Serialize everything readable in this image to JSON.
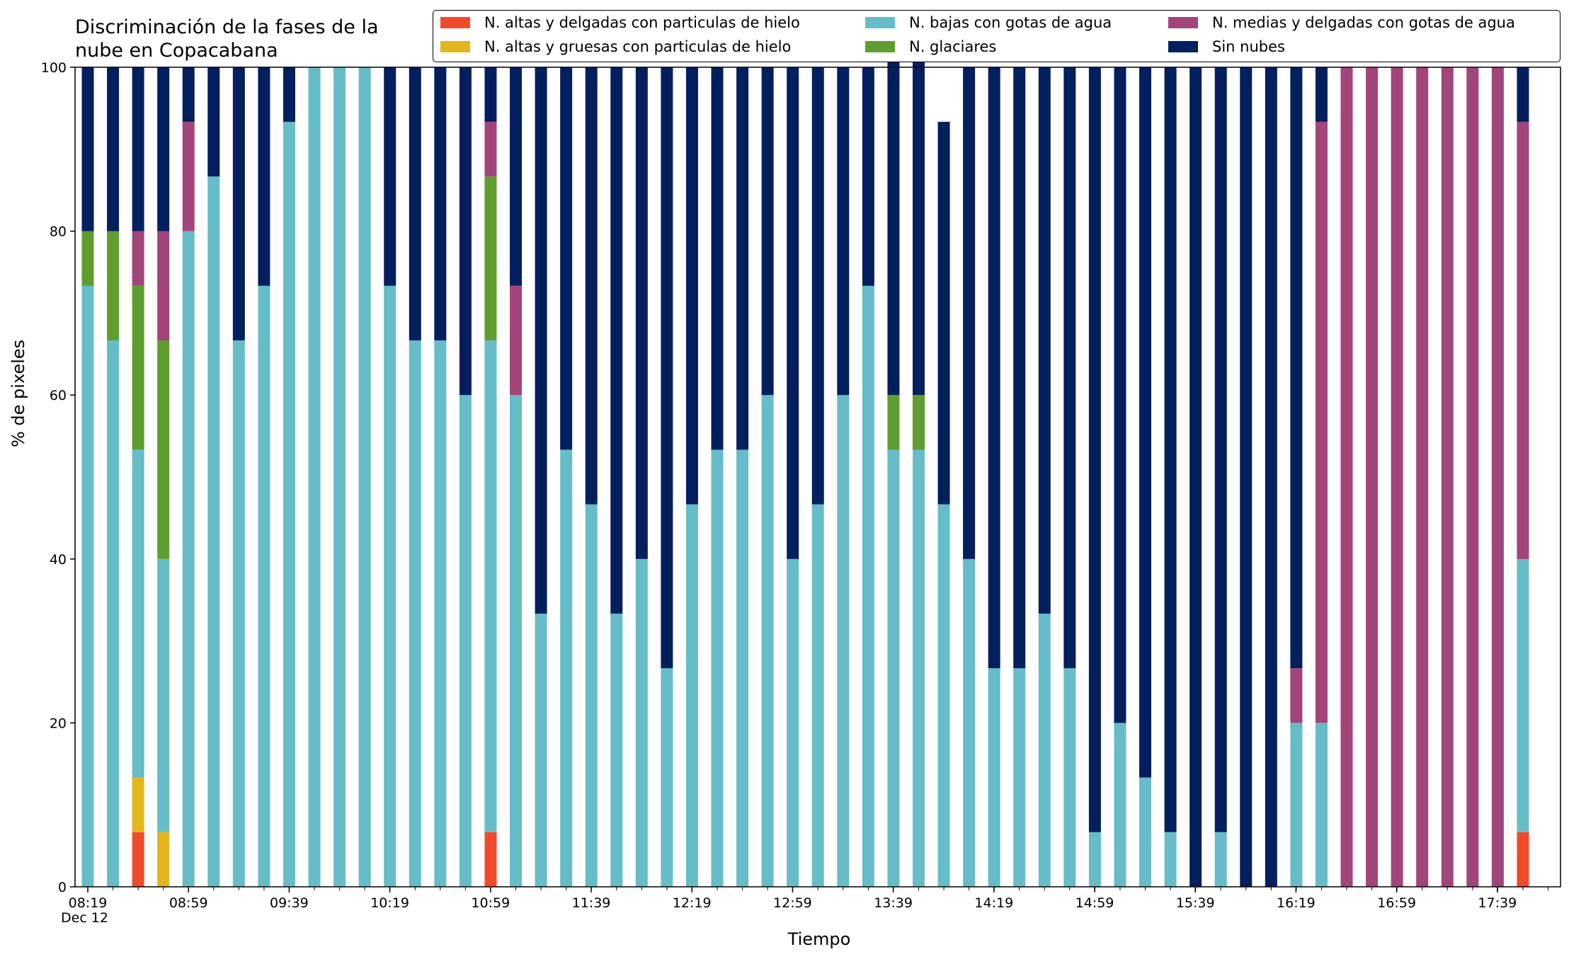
{
  "chart_data": {
    "type": "bar",
    "stacked": true,
    "title": "Discriminación de la fases de la\nnube en Copacabana",
    "xlabel": "Tiempo",
    "ylabel": "% de pixeles",
    "ylim": [
      0,
      100
    ],
    "yticks": [
      0,
      20,
      40,
      60,
      80,
      100
    ],
    "xtick_labels": [
      "08:19",
      "08:59",
      "09:39",
      "10:19",
      "10:59",
      "11:39",
      "12:19",
      "12:59",
      "13:39",
      "14:19",
      "14:59",
      "15:39",
      "16:19",
      "16:59",
      "17:39"
    ],
    "xtick_sublabel": "Dec 12",
    "legend_position": "top-right",
    "grid": false,
    "series": [
      {
        "name": "N. altas y delgadas con particulas de hielo",
        "color": "#f04a2c",
        "values": [
          0,
          0,
          6.67,
          0,
          0,
          0,
          0,
          0,
          0,
          0,
          0,
          0,
          0,
          0,
          0,
          0,
          6.67,
          0,
          0,
          0,
          0,
          0,
          0,
          0,
          0,
          0,
          0,
          0,
          0,
          0,
          0,
          0,
          0,
          0,
          0,
          0,
          0,
          0,
          0,
          0,
          0,
          0,
          0,
          0,
          0,
          0,
          0,
          0,
          0,
          0,
          0,
          0,
          0,
          0,
          0,
          0,
          0,
          6.67
        ]
      },
      {
        "name": "N. altas y gruesas con particulas de hielo",
        "color": "#e3b51e",
        "values": [
          0,
          0,
          6.67,
          6.67,
          0,
          0,
          0,
          0,
          0,
          0,
          0,
          0,
          0,
          0,
          0,
          0,
          0,
          0,
          0,
          0,
          0,
          0,
          0,
          0,
          0,
          0,
          0,
          0,
          0,
          0,
          0,
          0,
          0,
          0,
          0,
          0,
          0,
          0,
          0,
          0,
          0,
          0,
          0,
          0,
          0,
          0,
          0,
          0,
          0,
          0,
          0,
          0,
          0,
          0,
          0,
          0,
          0,
          0
        ]
      },
      {
        "name": "N. bajas con gotas de agua",
        "color": "#66bdc8",
        "values": [
          73.33,
          66.67,
          40,
          33.33,
          80,
          86.67,
          66.67,
          73.33,
          93.33,
          100,
          100,
          100,
          73.33,
          66.67,
          66.67,
          60,
          60,
          60,
          33.33,
          53.33,
          46.67,
          33.33,
          40,
          26.67,
          46.67,
          53.33,
          53.33,
          60,
          40,
          46.67,
          60,
          73.33,
          53.33,
          53.33,
          46.67,
          40,
          26.67,
          26.67,
          33.33,
          26.67,
          6.67,
          20,
          13.33,
          6.67,
          0,
          6.67,
          0,
          0,
          20,
          20,
          0,
          0,
          0,
          0,
          0,
          0,
          0,
          33.33
        ]
      },
      {
        "name": "N. glaciares",
        "color": "#5f9e2e",
        "values": [
          6.67,
          13.33,
          20,
          26.67,
          0,
          0,
          0,
          0,
          0,
          0,
          0,
          0,
          0,
          0,
          0,
          0,
          20,
          0,
          0,
          0,
          0,
          0,
          0,
          0,
          0,
          0,
          0,
          0,
          0,
          0,
          0,
          0,
          6.67,
          6.67,
          0,
          0,
          0,
          0,
          0,
          0,
          0,
          0,
          0,
          0,
          0,
          0,
          0,
          0,
          0,
          0,
          0,
          0,
          0,
          0,
          0,
          0,
          0,
          0
        ]
      },
      {
        "name": "N. medias y delgadas con gotas de agua",
        "color": "#a1457a",
        "values": [
          0,
          0,
          6.67,
          13.33,
          13.33,
          0,
          0,
          0,
          0,
          0,
          0,
          0,
          0,
          0,
          0,
          0,
          6.67,
          13.33,
          0,
          0,
          0,
          0,
          0,
          0,
          0,
          0,
          0,
          0,
          0,
          0,
          0,
          0,
          0,
          0,
          0,
          0,
          0,
          0,
          0,
          0,
          0,
          0,
          0,
          0,
          0,
          0,
          0,
          0,
          6.67,
          73.33,
          100,
          100,
          100,
          100,
          100,
          100,
          100,
          53.33
        ]
      },
      {
        "name": "Sin nubes",
        "color": "#041f5e",
        "values": [
          20,
          20,
          20,
          20,
          6.67,
          13.33,
          33.33,
          26.67,
          6.67,
          0,
          0,
          0,
          26.67,
          33.33,
          33.33,
          40,
          6.67,
          26.67,
          66.67,
          46.67,
          53.33,
          66.67,
          60,
          73.33,
          53.33,
          46.67,
          46.67,
          40,
          60,
          53.33,
          40,
          26.67,
          46.67,
          46.67,
          46.67,
          60,
          73.33,
          73.33,
          66.67,
          73.33,
          93.33,
          80,
          86.67,
          93.33,
          100,
          93.33,
          100,
          100,
          73.33,
          6.67,
          0,
          0,
          0,
          0,
          0,
          0,
          0,
          6.67
        ]
      }
    ]
  }
}
